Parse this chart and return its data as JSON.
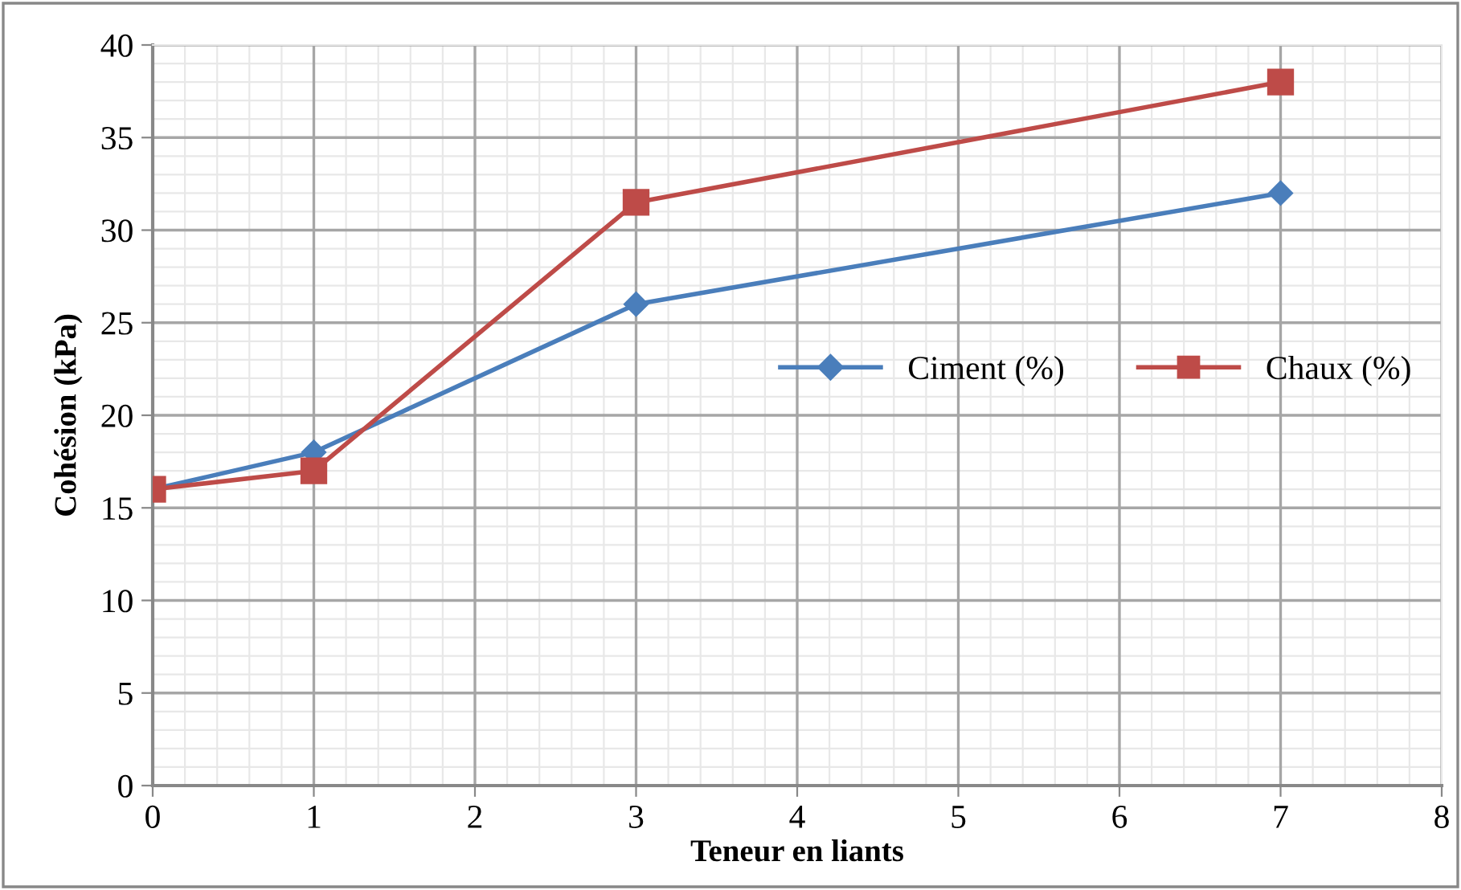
{
  "chart_data": {
    "type": "line",
    "xlabel": "Teneur en liants",
    "ylabel": "Cohésion (kPa)",
    "xlim": [
      0,
      8
    ],
    "xticks": [
      0,
      1,
      2,
      3,
      4,
      5,
      6,
      7,
      8
    ],
    "ylim": [
      0,
      40
    ],
    "yticks": [
      0,
      5,
      10,
      15,
      20,
      25,
      30,
      35,
      40
    ],
    "grid": true,
    "legend": "right",
    "line_style": "solid",
    "series": [
      {
        "name": "Ciment (%)",
        "color": "#4a7ebb",
        "marker": "diamond",
        "x": [
          0,
          1,
          3,
          7
        ],
        "values": [
          16,
          18,
          26,
          32
        ]
      },
      {
        "name": "Chaux (%)",
        "color": "#be4b48",
        "marker": "square",
        "x": [
          0,
          1,
          3,
          7
        ],
        "values": [
          16,
          17,
          31.5,
          38
        ]
      }
    ]
  }
}
